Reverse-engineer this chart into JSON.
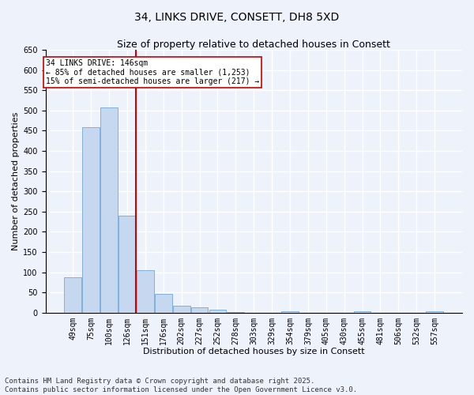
{
  "title_line1": "34, LINKS DRIVE, CONSETT, DH8 5XD",
  "title_line2": "Size of property relative to detached houses in Consett",
  "xlabel": "Distribution of detached houses by size in Consett",
  "ylabel": "Number of detached properties",
  "categories": [
    "49sqm",
    "75sqm",
    "100sqm",
    "126sqm",
    "151sqm",
    "176sqm",
    "202sqm",
    "227sqm",
    "252sqm",
    "278sqm",
    "303sqm",
    "329sqm",
    "354sqm",
    "379sqm",
    "405sqm",
    "430sqm",
    "455sqm",
    "481sqm",
    "506sqm",
    "532sqm",
    "557sqm"
  ],
  "values": [
    88,
    458,
    507,
    240,
    104,
    47,
    18,
    13,
    8,
    2,
    0,
    0,
    3,
    0,
    0,
    0,
    3,
    0,
    0,
    0,
    3
  ],
  "bar_color": "#c5d8f0",
  "bar_edge_color": "#5b9bd5",
  "vline_x": 3.5,
  "vline_color": "#cc0000",
  "annotation_text": "34 LINKS DRIVE: 146sqm\n← 85% of detached houses are smaller (1,253)\n15% of semi-detached houses are larger (217) →",
  "annotation_box_color": "#cc0000",
  "annotation_text_color": "#000000",
  "annotation_facecolor": "#ffffff",
  "ylim": [
    0,
    650
  ],
  "yticks": [
    0,
    50,
    100,
    150,
    200,
    250,
    300,
    350,
    400,
    450,
    500,
    550,
    600,
    650
  ],
  "footer_line1": "Contains HM Land Registry data © Crown copyright and database right 2025.",
  "footer_line2": "Contains public sector information licensed under the Open Government Licence v3.0.",
  "background_color": "#eef2fb",
  "plot_background_color": "#eef2fb",
  "grid_color": "#ffffff",
  "title_fontsize": 10,
  "subtitle_fontsize": 9,
  "axis_label_fontsize": 8,
  "tick_fontsize": 7,
  "footer_fontsize": 6.5,
  "figsize": [
    6.0,
    5.0
  ],
  "dpi": 100
}
